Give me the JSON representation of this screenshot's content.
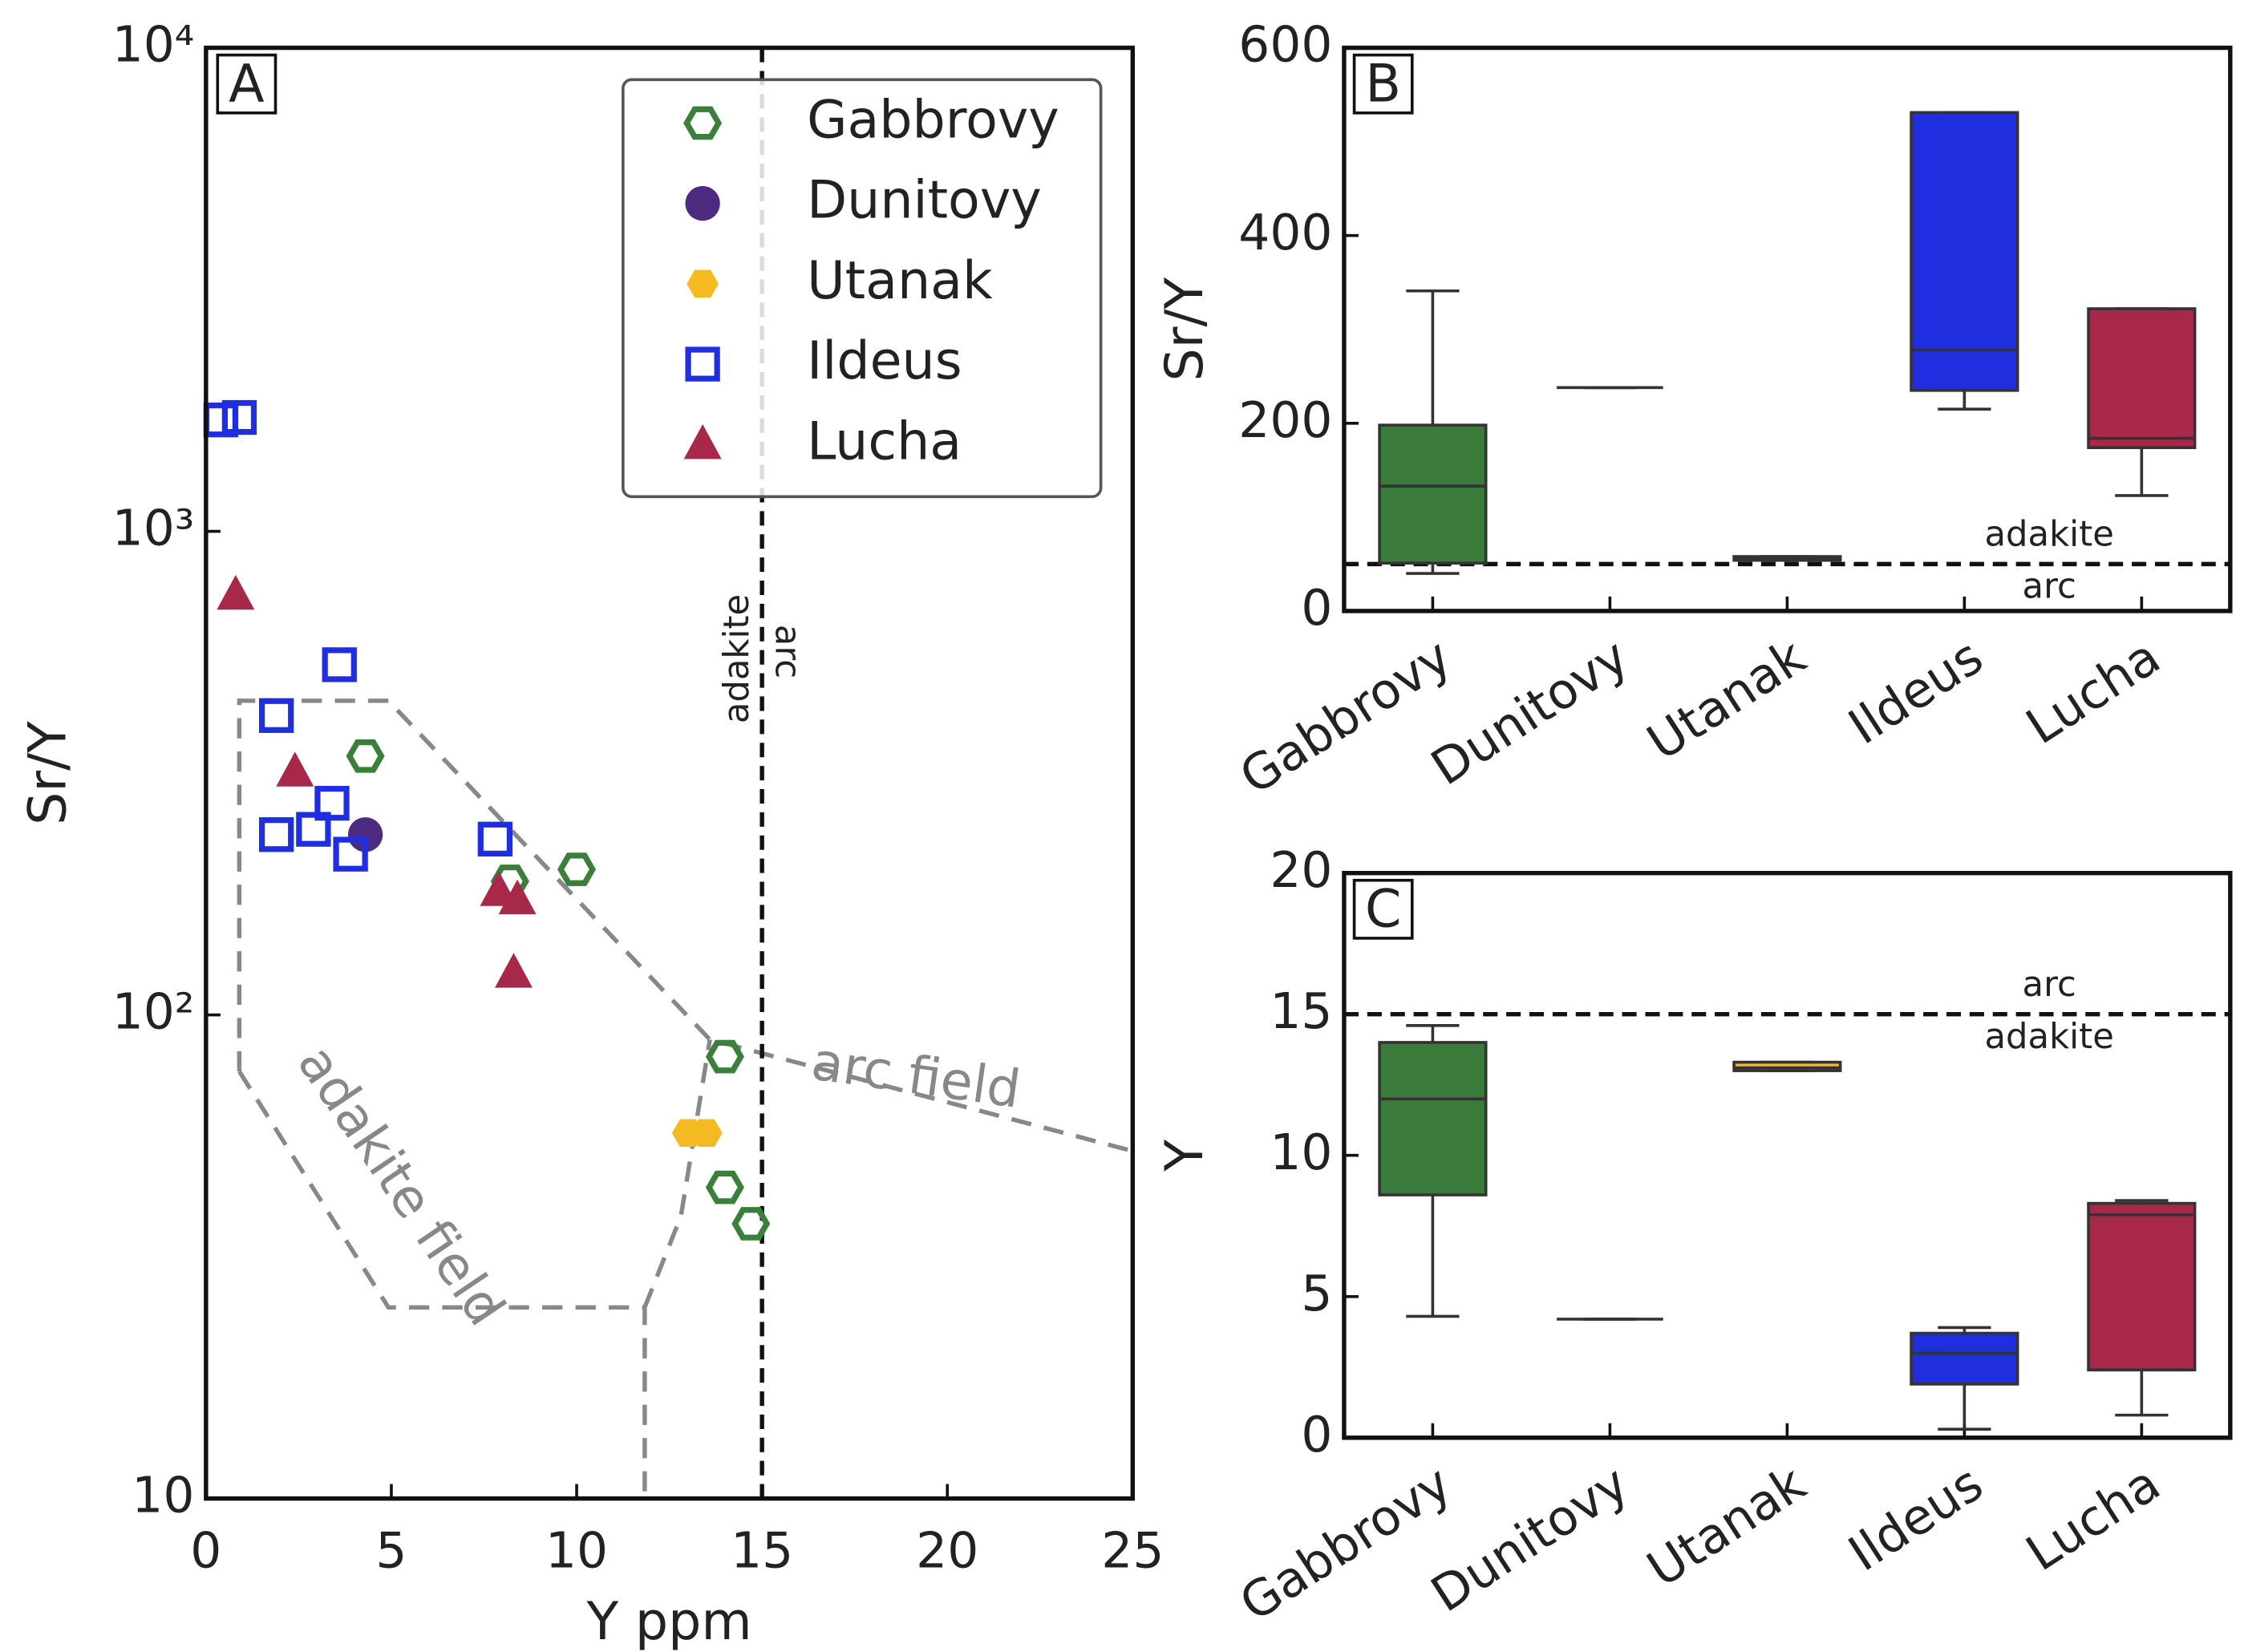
{
  "chart_data": [
    {
      "type": "scatter",
      "panel": "A",
      "xlabel": "Y ppm",
      "ylabel": "Sr/Y",
      "log_y": true,
      "xlim": [
        0,
        25
      ],
      "ylim": [
        10,
        10000
      ],
      "xticks": [
        0,
        5,
        10,
        15,
        20,
        25
      ],
      "yticks": [
        10,
        {
          "value": 100,
          "label": "10²"
        },
        {
          "value": 1000,
          "label": "10³"
        },
        {
          "value": 10000,
          "label": "10⁴"
        }
      ],
      "legend": "upper right",
      "divider_x": 15,
      "annotations": [
        "adakite field",
        "arc field",
        "adakite",
        "arc"
      ],
      "series": [
        {
          "name": "Gabbrovy",
          "color": "#3a7f3a",
          "marker": "hexagon-open",
          "x": [
            4.3,
            8.2,
            10,
            14,
            14,
            14.7
          ],
          "y": [
            343,
            189,
            200,
            82,
            44,
            37
          ]
        },
        {
          "name": "Dunitovy",
          "color": "#4b2a80",
          "marker": "circle",
          "x": [
            4.3
          ],
          "y": [
            236
          ]
        },
        {
          "name": "Utanak",
          "color": "#f5b921",
          "marker": "hexagon",
          "x": [
            13,
            13.5
          ],
          "y": [
            57,
            57
          ]
        },
        {
          "name": "Ildeus",
          "color": "#1f2fe0",
          "marker": "square-open",
          "x": [
            0.4,
            0.9,
            3.6,
            1.9,
            3.4,
            2.9,
            1.9,
            3.9,
            7.8
          ],
          "y": [
            1700,
            1720,
            530,
            416,
            274,
            242,
            236,
            215,
            231
          ]
        },
        {
          "name": "Lucha",
          "color": "#a8284a",
          "marker": "triangle",
          "x": [
            0.8,
            2.4,
            7.9,
            8.4,
            8.3
          ],
          "y": [
            738,
            318,
            180,
            173,
            122
          ]
        }
      ]
    },
    {
      "type": "box",
      "panel": "B",
      "ylabel": "Sr/Y",
      "ylim": [
        0,
        600
      ],
      "yticks": [
        0,
        200,
        400,
        600
      ],
      "categories": [
        "Gabbrovy",
        "Dunitovy",
        "Utanak",
        "Ildeus",
        "Lucha"
      ],
      "threshold": 50,
      "threshold_above": "adakite",
      "threshold_below": "arc",
      "boxes": [
        {
          "color": "#3a7a3a",
          "min": 40,
          "q1": 51,
          "median": 133,
          "q3": 198,
          "max": 341
        },
        {
          "color": "#4b2a80",
          "min": 238,
          "q1": 238,
          "median": 238,
          "q3": 238,
          "max": 238
        },
        {
          "color": "#f5b921",
          "min": 54,
          "q1": 54,
          "median": 56,
          "q3": 58,
          "max": 58
        },
        {
          "color": "#1f2fe0",
          "min": 215,
          "q1": 235,
          "median": 278,
          "q3": 531,
          "max": 531
        },
        {
          "color": "#a8284a",
          "min": 123,
          "q1": 174,
          "median": 184,
          "q3": 322,
          "max": 322
        }
      ]
    },
    {
      "type": "box",
      "panel": "C",
      "ylabel": "Y",
      "ylim": [
        0,
        20
      ],
      "yticks": [
        0,
        5,
        10,
        15,
        20
      ],
      "categories": [
        "Gabbrovy",
        "Dunitovy",
        "Utanak",
        "Ildeus",
        "Lucha"
      ],
      "threshold": 15,
      "threshold_above": "arc",
      "threshold_below": "adakite",
      "boxes": [
        {
          "color": "#3a7a3a",
          "min": 4.3,
          "q1": 8.6,
          "median": 12,
          "q3": 14,
          "max": 14.6
        },
        {
          "color": "#4b2a80",
          "min": 4.2,
          "q1": 4.2,
          "median": 4.2,
          "q3": 4.2,
          "max": 4.2
        },
        {
          "color": "#f5b921",
          "min": 13,
          "q1": 13,
          "median": 13.1,
          "q3": 13.3,
          "max": 13.3
        },
        {
          "color": "#1f2fe0",
          "min": 0.3,
          "q1": 1.9,
          "median": 3,
          "q3": 3.7,
          "max": 3.9
        },
        {
          "color": "#a8284a",
          "min": 0.8,
          "q1": 2.4,
          "median": 7.9,
          "q3": 8.3,
          "max": 8.4
        }
      ]
    }
  ]
}
